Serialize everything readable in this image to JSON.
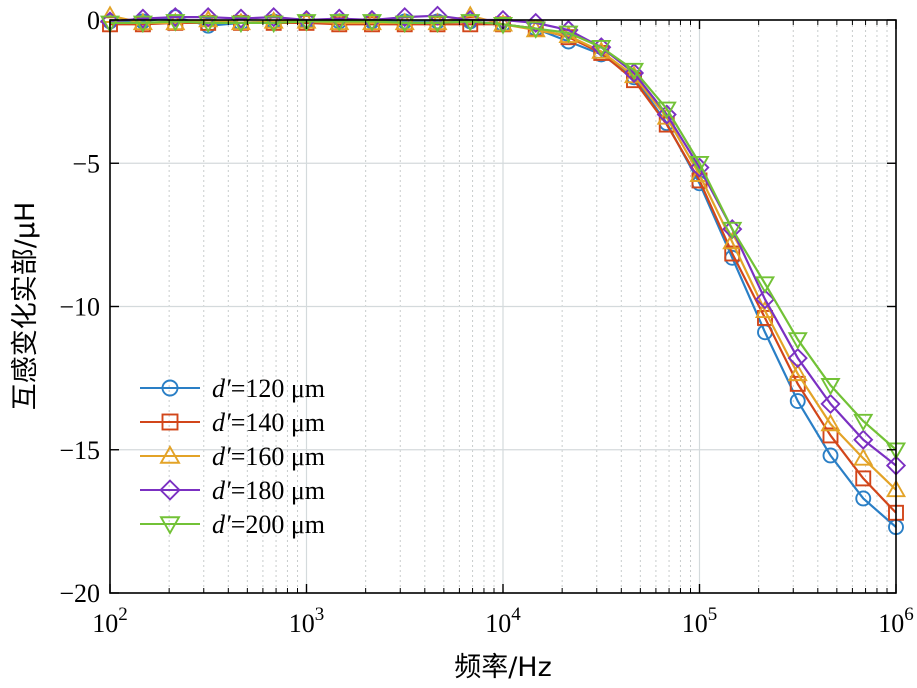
{
  "chart_data": {
    "type": "line",
    "xscale": "log",
    "xlabel": "频率/Hz",
    "ylabel": "互感变化实部/μH",
    "xlim": [
      100,
      1000000
    ],
    "ylim": [
      -20,
      0
    ],
    "xticks": [
      {
        "value": 100,
        "base": "10",
        "exp": "2"
      },
      {
        "value": 1000,
        "base": "10",
        "exp": "3"
      },
      {
        "value": 10000,
        "base": "10",
        "exp": "4"
      },
      {
        "value": 100000,
        "base": "10",
        "exp": "5"
      },
      {
        "value": 1000000,
        "base": "10",
        "exp": "6"
      }
    ],
    "yticks": [
      {
        "value": 0,
        "label": "0"
      },
      {
        "value": -5,
        "label": "−5"
      },
      {
        "value": -10,
        "label": "−10"
      },
      {
        "value": -15,
        "label": "−15"
      },
      {
        "value": -20,
        "label": "−20"
      }
    ],
    "grid": true,
    "legend_position": "lower-left",
    "x": [
      100,
      147,
      215,
      316,
      464,
      681,
      1000,
      1468,
      2154,
      3162,
      4642,
      6813,
      10000,
      14678,
      21544,
      31623,
      46416,
      68129,
      100000,
      146780,
      215440,
      316230,
      464160,
      681290,
      1000000
    ],
    "series": [
      {
        "name_prefix": "d′",
        "name_value": "=120 μm",
        "marker": "circle",
        "color": "#2a7fc6",
        "values": [
          -0.05,
          -0.05,
          0.1,
          -0.2,
          -0.1,
          -0.05,
          -0.05,
          -0.05,
          -0.05,
          -0.05,
          -0.05,
          -0.05,
          -0.15,
          -0.3,
          -0.75,
          -1.2,
          -2.0,
          -3.6,
          -5.7,
          -8.3,
          -10.9,
          -13.3,
          -15.2,
          -16.7,
          -17.7
        ]
      },
      {
        "name_prefix": "d′",
        "name_value": "=140 μm",
        "marker": "square",
        "color": "#d2461a",
        "values": [
          -0.15,
          -0.15,
          -0.1,
          -0.1,
          -0.1,
          -0.1,
          -0.1,
          -0.15,
          -0.15,
          -0.15,
          -0.15,
          -0.15,
          -0.15,
          -0.3,
          -0.6,
          -1.15,
          -2.1,
          -3.65,
          -5.6,
          -8.15,
          -10.4,
          -12.7,
          -14.5,
          -16.0,
          -17.2
        ]
      },
      {
        "name_prefix": "d′",
        "name_value": "=160 μm",
        "marker": "triangle-up",
        "color": "#e3a327",
        "values": [
          0.15,
          -0.1,
          -0.1,
          0.0,
          -0.1,
          -0.05,
          -0.05,
          -0.1,
          -0.1,
          -0.1,
          -0.1,
          0.15,
          -0.15,
          -0.35,
          -0.55,
          -1.1,
          -1.95,
          -3.4,
          -5.4,
          -7.75,
          -10.15,
          -12.35,
          -14.1,
          -15.3,
          -16.4
        ]
      },
      {
        "name_prefix": "d′",
        "name_value": "=180 μm",
        "marker": "diamond",
        "color": "#7b30c2",
        "values": [
          -0.05,
          0.05,
          0.1,
          0.1,
          0.05,
          0.1,
          0.0,
          0.05,
          0.0,
          0.1,
          0.15,
          0.0,
          0.0,
          -0.1,
          -0.35,
          -0.95,
          -1.85,
          -3.3,
          -5.15,
          -7.3,
          -9.75,
          -11.8,
          -13.4,
          -14.65,
          -15.55
        ]
      },
      {
        "name_prefix": "d′",
        "name_value": "=200 μm",
        "marker": "triangle-down",
        "color": "#72c236",
        "values": [
          -0.1,
          -0.1,
          -0.05,
          -0.1,
          -0.1,
          -0.1,
          -0.05,
          -0.05,
          -0.05,
          -0.1,
          -0.1,
          -0.05,
          -0.15,
          -0.3,
          -0.45,
          -0.95,
          -1.75,
          -3.1,
          -5.0,
          -7.3,
          -9.2,
          -11.15,
          -12.75,
          -14.0,
          -15.0
        ]
      }
    ]
  }
}
